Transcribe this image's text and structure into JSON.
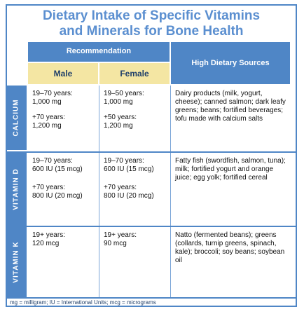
{
  "title_line1": "Dietary Intake of Specific Vitamins",
  "title_line2": "and Minerals for Bone Health",
  "header": {
    "recommendation": "Recommendation",
    "male": "Male",
    "female": "Female",
    "sources": "High Dietary Sources"
  },
  "rows": [
    {
      "label": "CALCIUM",
      "male_1": "19–70 years:",
      "male_2": "1,000 mg",
      "male_3": "+70 years:",
      "male_4": "1,200 mg",
      "female_1": "19–50 years:",
      "female_2": "1,000 mg",
      "female_3": "+50 years:",
      "female_4": "1,200 mg",
      "sources": "Dairy products (milk, yogurt, cheese); canned salmon; dark leafy greens; beans; fortified beverages; tofu made with calcium salts"
    },
    {
      "label": "VITAMIN D",
      "male_1": "19–70 years:",
      "male_2": "600 IU (15 mcg)",
      "male_3": "+70 years:",
      "male_4": "800 IU (20 mcg)",
      "female_1": "19–70 years:",
      "female_2": "600 IU (15 mcg)",
      "female_3": "+70 years:",
      "female_4": "800 IU (20 mcg)",
      "sources": "Fatty fish (swordfish, salmon, tuna); milk; fortified yogurt and orange juice; egg yolk; fortified cereal"
    },
    {
      "label": "VITAMIN K",
      "male_1": "19+ years:",
      "male_2": "120 mcg",
      "female_1": "19+ years:",
      "female_2": "90 mcg",
      "sources": "Natto (fermented beans); greens (collards, turnip greens, spinach, kale); broccoli; soy beans; soybean oil"
    }
  ],
  "footer": "mg = milligram; IU = International Units; mcg = micrograms"
}
